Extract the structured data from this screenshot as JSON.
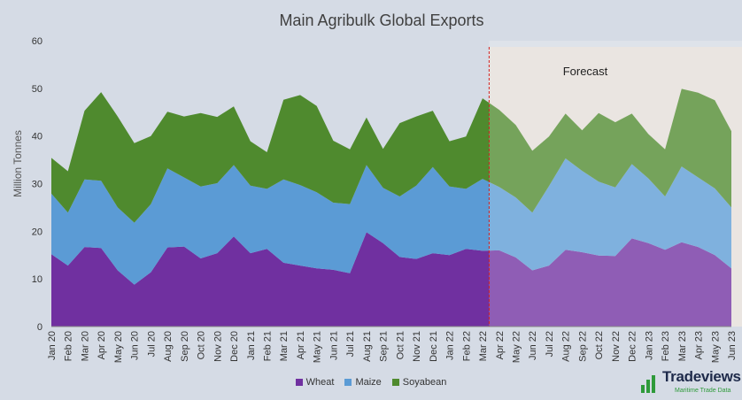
{
  "chart_data": {
    "type": "area",
    "stacked": true,
    "title": "Main Agribulk Global Exports",
    "ylabel": "Million Tonnes",
    "xlabel": "",
    "ylim": [
      0,
      60
    ],
    "yticks": [
      0,
      10,
      20,
      30,
      40,
      50,
      60
    ],
    "categories": [
      "Jan 20",
      "Feb 20",
      "Mar 20",
      "Apr 20",
      "May 20",
      "Jun 20",
      "Jul 20",
      "Aug 20",
      "Sep 20",
      "Oct 20",
      "Nov 20",
      "Dec 20",
      "Jan 21",
      "Feb 21",
      "Mar 21",
      "Apr 21",
      "May 21",
      "Jun 21",
      "Jul 21",
      "Aug 21",
      "Sep 21",
      "Oct 21",
      "Nov 21",
      "Dec 21",
      "Jan 22",
      "Feb 22",
      "Mar 22",
      "Apr 22",
      "May 22",
      "Jun 22",
      "Jul 22",
      "Aug 22",
      "Sep 22",
      "Oct 22",
      "Nov 22",
      "Dec 22",
      "Jan 23",
      "Feb 23",
      "Mar 23",
      "Apr 23",
      "May 23",
      "Jun 23"
    ],
    "series": [
      {
        "name": "Wheat",
        "color": "#7030a0",
        "values": [
          15.2,
          12.8,
          16.7,
          16.5,
          11.8,
          8.8,
          11.4,
          16.6,
          16.8,
          14.3,
          15.4,
          18.9,
          15.4,
          16.3,
          13.4,
          12.8,
          12.2,
          11.9,
          11.2,
          19.8,
          17.5,
          14.6,
          14.2,
          15.4,
          15.0,
          16.3,
          15.9,
          16.0,
          14.5,
          11.8,
          12.8,
          16.1,
          15.6,
          14.9,
          14.8,
          18.5,
          17.5,
          16.1,
          17.7,
          16.7,
          15.0,
          12.2
        ]
      },
      {
        "name": "Maize",
        "color": "#5b9bd5",
        "values": [
          12.7,
          11.1,
          14.2,
          14.1,
          13.2,
          13.0,
          14.3,
          16.6,
          14.5,
          15.1,
          14.7,
          15.0,
          14.2,
          12.6,
          17.5,
          16.9,
          16.0,
          14.1,
          14.5,
          14.1,
          11.6,
          12.7,
          15.4,
          18.1,
          14.4,
          12.6,
          15.1,
          13.3,
          12.6,
          12.1,
          16.7,
          19.2,
          17.1,
          15.5,
          14.4,
          15.6,
          13.6,
          11.2,
          15.9,
          14.6,
          14.0,
          12.8
        ]
      },
      {
        "name": "Soyabean",
        "color": "#4f8a2e",
        "values": [
          7.5,
          8.7,
          14.4,
          18.6,
          19.1,
          16.7,
          14.3,
          11.9,
          12.8,
          15.4,
          13.9,
          12.3,
          9.3,
          7.7,
          16.7,
          18.9,
          18.1,
          13.0,
          11.5,
          10.0,
          8.2,
          15.4,
          14.5,
          11.8,
          9.5,
          11.0,
          16.9,
          16.2,
          15.2,
          13.0,
          10.4,
          9.4,
          8.5,
          14.4,
          13.7,
          10.6,
          9.3,
          9.9,
          16.3,
          17.8,
          18.5,
          16.0
        ]
      }
    ],
    "forecast": {
      "label": "Forecast",
      "start": "Apr 22",
      "end": "Jun 23",
      "color": "#e4ded9"
    },
    "legend_placement": "bottom",
    "grid": false
  },
  "branding": {
    "name": "Tradeviews",
    "tagline": "Maritime Trade Data"
  }
}
